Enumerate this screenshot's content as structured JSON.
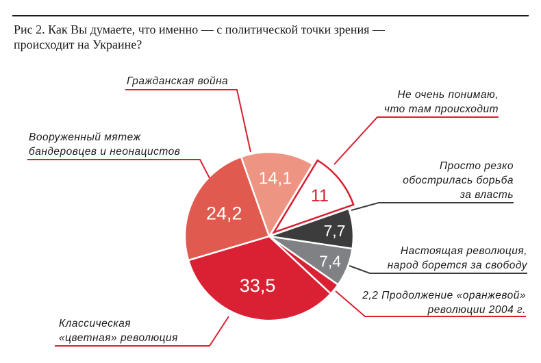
{
  "chart_data": {
    "type": "pie",
    "title": "Рис 2. Как Вы думаете, что именно — с политической точки зрения — происходит на Украине?",
    "start_angle_deg": -19.5,
    "direction": "clockwise",
    "slices": [
      {
        "label": "Гражданская война",
        "value": 14.1,
        "display": "14,1",
        "color": "#ee9482",
        "text_color": "#ffffff"
      },
      {
        "label": "Не очень понимаю,\nчто там происходит",
        "value": 11,
        "display": "11",
        "color": "#ffffff",
        "stroke": "#d81f30",
        "text_color": "#d81f30",
        "exploded": true
      },
      {
        "label": "Просто резко\nобострилась борьба\nза власть",
        "value": 7.7,
        "display": "7,7",
        "color": "#3c3c3c",
        "text_color": "#ffffff"
      },
      {
        "label": "Настоящая революция,\nнарод борется за свободу",
        "value": 7.4,
        "display": "7,4",
        "color": "#808184",
        "text_color": "#ffffff"
      },
      {
        "label": "Продолжение «оранжевой»\nреволюции 2004 г.",
        "value": 2.2,
        "display": "2,2",
        "color": "#d92133",
        "text_color": "#1a1a1a",
        "label_outside": true
      },
      {
        "label": "Классическая\n«цветная» революция",
        "value": 33.5,
        "display": "33,5",
        "color": "#d92133",
        "text_color": "#ffffff"
      },
      {
        "label": "Вооруженный мятеж\nбандеровцев и неонацистов",
        "value": 24.2,
        "display": "24,2",
        "color": "#e05a4f",
        "text_color": "#ffffff"
      }
    ],
    "leader_colors": {
      "red": "#d81f30",
      "dark": "#3c3c3c"
    }
  }
}
